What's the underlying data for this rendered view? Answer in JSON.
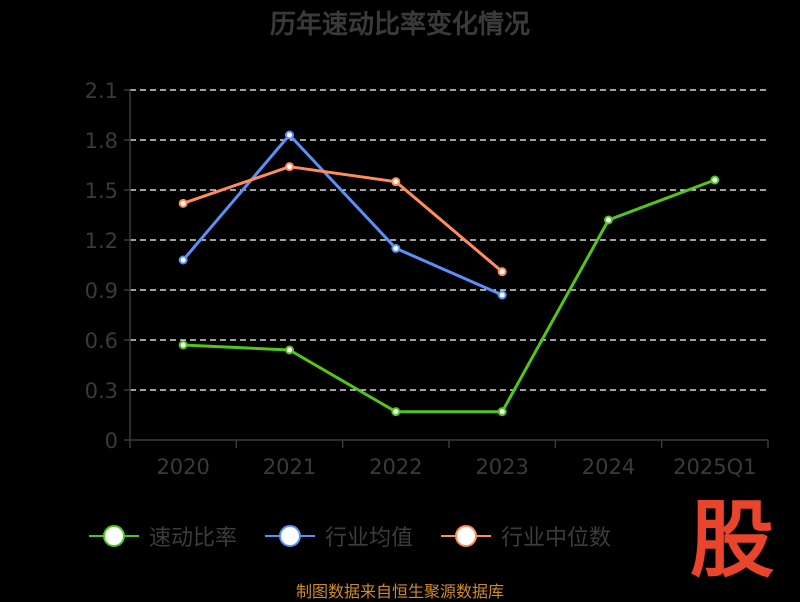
{
  "chart_data": {
    "type": "line",
    "title": "历年速动比率变化情况",
    "categories": [
      "2020",
      "2021",
      "2022",
      "2023",
      "2024",
      "2025Q1"
    ],
    "y_ticks": [
      "0",
      "0.3",
      "0.6",
      "0.9",
      "1.2",
      "1.5",
      "1.8",
      "2.1"
    ],
    "ylim": [
      0,
      2.1
    ],
    "grid": true,
    "legend_position": "bottom",
    "series": [
      {
        "name": "速动比率",
        "color": "#52c41a",
        "values": [
          0.57,
          0.54,
          0.17,
          0.17,
          1.32,
          1.56
        ]
      },
      {
        "name": "行业均值",
        "color": "#5b8ff9",
        "values": [
          1.08,
          1.83,
          1.15,
          0.87,
          null,
          null
        ]
      },
      {
        "name": "行业中位数",
        "color": "#ff8c5a",
        "values": [
          1.42,
          1.64,
          1.55,
          1.01,
          null,
          null
        ]
      }
    ]
  },
  "source_text": "制图数据来自恒生聚源数据库",
  "logo_text": "股"
}
